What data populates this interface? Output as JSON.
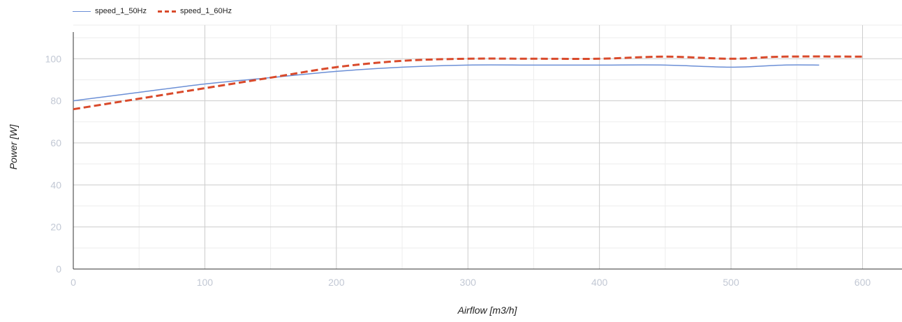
{
  "chart_data": {
    "type": "line",
    "xlabel": "Airflow [m3/h]",
    "ylabel": "Power [W]",
    "xlim": [
      0,
      630
    ],
    "ylim": [
      0,
      116
    ],
    "x_ticks": [
      0,
      100,
      200,
      300,
      400,
      500,
      600
    ],
    "y_ticks": [
      0,
      20,
      40,
      60,
      80,
      100
    ],
    "x_minor_ticks": [
      50,
      150,
      250,
      350,
      450,
      550
    ],
    "y_minor_ticks": [
      10,
      30,
      50,
      70,
      90,
      110
    ],
    "grid": true,
    "legend_position": "top-left",
    "series": [
      {
        "name": "speed_1_50Hz",
        "color": "#6b8fd6",
        "style": "solid",
        "x": [
          0,
          50,
          100,
          150,
          200,
          250,
          300,
          350,
          400,
          450,
          500,
          540,
          567
        ],
        "values": [
          80,
          84,
          88,
          91,
          94,
          96,
          97,
          97,
          97,
          97,
          96,
          97,
          97
        ]
      },
      {
        "name": "speed_1_60Hz",
        "color": "#d94a2b",
        "style": "dashed",
        "x": [
          0,
          50,
          100,
          150,
          200,
          250,
          300,
          350,
          400,
          450,
          500,
          540,
          600
        ],
        "values": [
          76,
          81,
          86,
          91,
          96,
          99,
          100,
          100,
          100,
          101,
          100,
          101,
          101
        ]
      }
    ]
  }
}
